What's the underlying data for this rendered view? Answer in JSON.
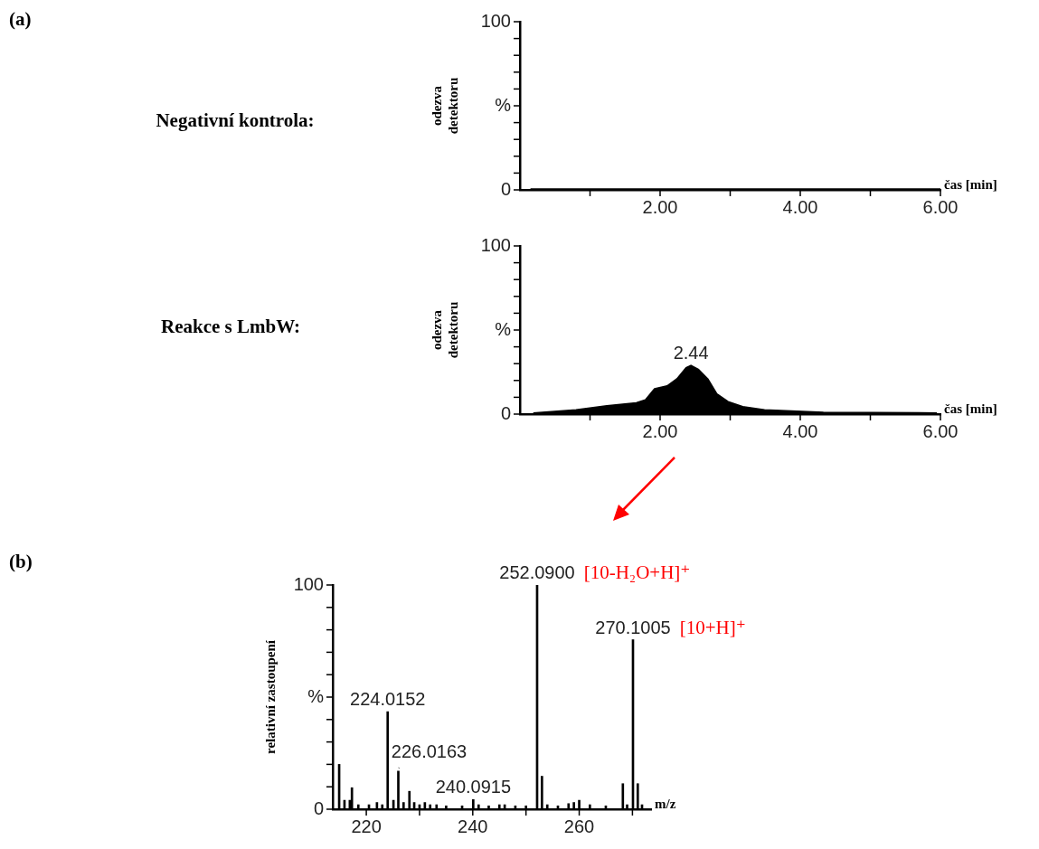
{
  "chart_data": [
    {
      "type": "area",
      "ylabel": "odezva\ndetektoru",
      "xlabel": "čas [min]",
      "annotations": [
        "(a)",
        "Negativní kontrola:"
      ],
      "color": "#000000",
      "x": [
        0.15,
        1,
        2,
        3,
        4,
        5,
        6
      ],
      "values": [
        0.5,
        0.5,
        0.5,
        0.5,
        0.5,
        0.5,
        0.5
      ],
      "xlim": [
        0,
        6
      ],
      "ylim": [
        0,
        100
      ],
      "xticks": [
        {
          "value": 1,
          "label": null
        },
        {
          "value": 2,
          "label": "2.00"
        },
        {
          "value": 3,
          "label": null
        },
        {
          "value": 4,
          "label": "4.00"
        },
        {
          "value": 5,
          "label": null
        },
        {
          "value": 6,
          "label": "6.00"
        }
      ],
      "yticks": [
        {
          "value": 0,
          "label": "0"
        },
        {
          "value": 10,
          "label": null
        },
        {
          "value": 20,
          "label": null
        },
        {
          "value": 30,
          "label": null
        },
        {
          "value": 40,
          "label": null
        },
        {
          "value": 50,
          "label": "%"
        },
        {
          "value": 60,
          "label": null
        },
        {
          "value": 70,
          "label": null
        },
        {
          "value": 80,
          "label": null
        },
        {
          "value": 90,
          "label": null
        },
        {
          "value": 100,
          "label": "100"
        }
      ]
    },
    {
      "type": "area",
      "ylabel": "odezva\ndetektoru",
      "xlabel": "čas [min]",
      "annotations": [
        "Reakce s LmbW:",
        {
          "text": "2.44",
          "x": 2.44,
          "y": 29
        }
      ],
      "color": "#000000",
      "x": [
        0.19,
        0.8,
        1.24,
        1.66,
        1.79,
        1.92,
        2.1,
        2.24,
        2.37,
        2.44,
        2.55,
        2.68,
        2.81,
        2.97,
        3.18,
        3.49,
        4.33,
        5.95
      ],
      "values": [
        0.7,
        2.5,
        5,
        6.7,
        8.5,
        15,
        16.8,
        21,
        27.6,
        29,
        26.5,
        21,
        12,
        7.4,
        4.5,
        2.5,
        1.1,
        0.7
      ],
      "xlim": [
        0,
        6
      ],
      "ylim": [
        0,
        100
      ],
      "xticks": [
        {
          "value": 1,
          "label": null
        },
        {
          "value": 2,
          "label": "2.00"
        },
        {
          "value": 3,
          "label": null
        },
        {
          "value": 4,
          "label": "4.00"
        },
        {
          "value": 5,
          "label": null
        },
        {
          "value": 6,
          "label": "6.00"
        }
      ],
      "yticks": [
        {
          "value": 0,
          "label": "0"
        },
        {
          "value": 10,
          "label": null
        },
        {
          "value": 20,
          "label": null
        },
        {
          "value": 30,
          "label": null
        },
        {
          "value": 40,
          "label": null
        },
        {
          "value": 50,
          "label": "%"
        },
        {
          "value": 60,
          "label": null
        },
        {
          "value": 70,
          "label": null
        },
        {
          "value": 80,
          "label": null
        },
        {
          "value": 90,
          "label": null
        },
        {
          "value": 100,
          "label": "100"
        }
      ]
    },
    {
      "type": "bar",
      "ylabel": "relativní zastoupení",
      "xlabel": "m/z",
      "color": "#000000",
      "annotations": [
        "(b)",
        {
          "text": "252.0900",
          "x": 252.09,
          "y": 100
        },
        {
          "text": "[10-H₂O+H]⁺",
          "x": 252.09,
          "y": 100
        },
        {
          "text": "270.1005",
          "x": 270.1005,
          "y": 75.6
        },
        {
          "text": "[10+H]⁺",
          "x": 270.1005,
          "y": 75.6
        },
        {
          "text": "224.0152",
          "x": 224.0152,
          "y": 43.5
        },
        {
          "text": "226.0163",
          "x": 226.0163,
          "y": 17
        },
        {
          "text": "240.0915",
          "x": 240.0915,
          "y": 4.3
        }
      ],
      "x": [
        214.9,
        215.9,
        216.9,
        217.3,
        218.5,
        220.5,
        222,
        223,
        224.0152,
        225.1,
        226.0163,
        227,
        228.1,
        229,
        230,
        231,
        232,
        233.2,
        235,
        238,
        240.0915,
        241.1,
        243,
        245,
        246,
        248,
        250,
        252.09,
        253,
        254,
        256,
        258,
        259,
        260,
        262,
        265,
        268.2,
        269,
        270.1005,
        271,
        271.8
      ],
      "values": [
        20,
        4,
        4,
        9.6,
        2,
        2,
        3,
        2,
        43.5,
        4,
        17,
        3,
        8,
        3,
        2,
        3,
        2,
        2,
        1.5,
        1.5,
        4.3,
        2,
        1.5,
        2,
        2,
        1.5,
        1.5,
        100,
        14.7,
        2,
        1.5,
        2.5,
        3,
        4,
        2,
        1.5,
        11.4,
        2,
        75.6,
        11.4,
        2
      ],
      "xlim": [
        213.7,
        273.5
      ],
      "ylim": [
        0,
        100
      ],
      "xticks": [
        220,
        {
          "value": 230,
          "label": null
        },
        240,
        {
          "value": 250,
          "label": null
        },
        260,
        {
          "value": 270,
          "label": null
        }
      ],
      "yticks": [
        {
          "value": 0,
          "label": "0"
        },
        {
          "value": 10,
          "label": null
        },
        {
          "value": 20,
          "label": null
        },
        {
          "value": 30,
          "label": null
        },
        {
          "value": 40,
          "label": null
        },
        {
          "value": 50,
          "label": "%"
        },
        {
          "value": 60,
          "label": null
        },
        {
          "value": 70,
          "label": null
        },
        {
          "value": 80,
          "label": null
        },
        {
          "value": 90,
          "label": null
        },
        {
          "value": 100,
          "label": "100"
        }
      ]
    }
  ]
}
